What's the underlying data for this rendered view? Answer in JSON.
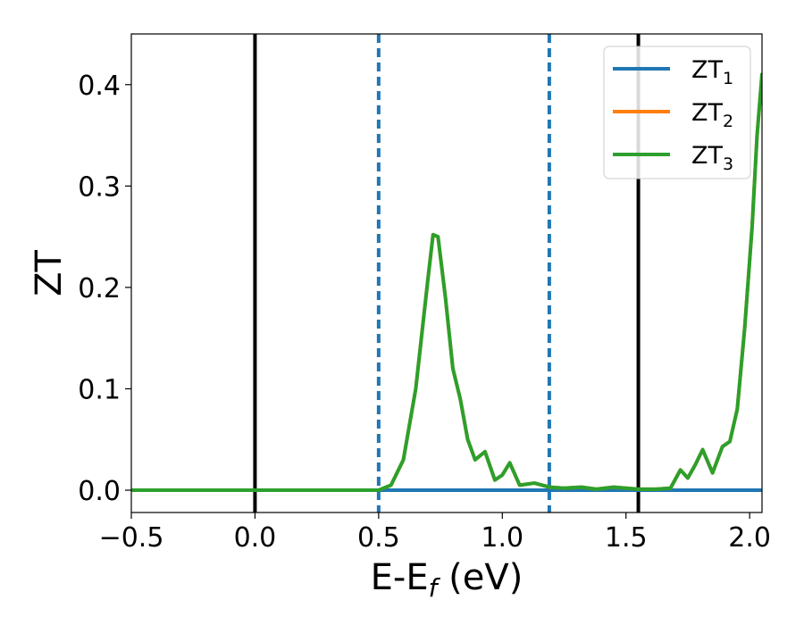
{
  "chart_data": {
    "type": "line",
    "xlabel": {
      "main": "E-E",
      "sub": "f",
      "suffix": " (eV)"
    },
    "ylabel": "ZT",
    "xlim": [
      -0.5,
      2.05
    ],
    "ylim": [
      -0.022,
      0.45
    ],
    "x_ticks": [
      -0.5,
      0.0,
      0.5,
      1.0,
      1.5,
      2.0
    ],
    "x_tick_labels": [
      "−0.5",
      "0.0",
      "0.5",
      "1.0",
      "1.5",
      "2.0"
    ],
    "y_ticks": [
      0.0,
      0.1,
      0.2,
      0.3,
      0.4
    ],
    "y_tick_labels": [
      "0.0",
      "0.1",
      "0.2",
      "0.3",
      "0.4"
    ],
    "grid": false,
    "legend_position": "top-right",
    "vertical_lines": [
      {
        "x": 0.0,
        "style": "solid",
        "color": "#000000"
      },
      {
        "x": 1.55,
        "style": "solid",
        "color": "#000000"
      },
      {
        "x": 0.5,
        "style": "dashed",
        "color": "#1f77b4"
      },
      {
        "x": 1.19,
        "style": "dashed",
        "color": "#1f77b4"
      }
    ],
    "series": [
      {
        "name": "ZT",
        "sub": "1",
        "color": "#1f77b4",
        "points": [
          [
            -0.5,
            0.0
          ],
          [
            2.05,
            0.0
          ]
        ]
      },
      {
        "name": "ZT",
        "sub": "2",
        "color": "#ff7f0e",
        "points": [
          [
            -0.5,
            0.0
          ],
          [
            0.4,
            0.0
          ],
          [
            0.5,
            0.0
          ],
          [
            0.55,
            0.005
          ],
          [
            0.6,
            0.03
          ],
          [
            0.65,
            0.1
          ],
          [
            0.7,
            0.21
          ],
          [
            0.72,
            0.252
          ],
          [
            0.74,
            0.25
          ],
          [
            0.77,
            0.19
          ],
          [
            0.8,
            0.12
          ],
          [
            0.83,
            0.09
          ],
          [
            0.86,
            0.05
          ],
          [
            0.89,
            0.03
          ],
          [
            0.93,
            0.038
          ],
          [
            0.97,
            0.01
          ],
          [
            1.0,
            0.015
          ],
          [
            1.03,
            0.027
          ],
          [
            1.07,
            0.005
          ],
          [
            1.13,
            0.007
          ],
          [
            1.19,
            0.003
          ],
          [
            1.25,
            0.002
          ],
          [
            1.32,
            0.003
          ],
          [
            1.38,
            0.001
          ],
          [
            1.45,
            0.003
          ],
          [
            1.55,
            0.001
          ],
          [
            1.62,
            0.001
          ],
          [
            1.68,
            0.002
          ],
          [
            1.72,
            0.02
          ],
          [
            1.75,
            0.012
          ],
          [
            1.78,
            0.025
          ],
          [
            1.81,
            0.04
          ],
          [
            1.85,
            0.017
          ],
          [
            1.89,
            0.043
          ],
          [
            1.92,
            0.048
          ],
          [
            1.95,
            0.08
          ],
          [
            1.98,
            0.16
          ],
          [
            2.01,
            0.26
          ],
          [
            2.03,
            0.35
          ],
          [
            2.05,
            0.41
          ]
        ]
      },
      {
        "name": "ZT",
        "sub": "3",
        "color": "#2ca02c",
        "points": [
          [
            -0.5,
            0.0
          ],
          [
            0.4,
            0.0
          ],
          [
            0.5,
            0.0
          ],
          [
            0.55,
            0.005
          ],
          [
            0.6,
            0.03
          ],
          [
            0.65,
            0.1
          ],
          [
            0.7,
            0.21
          ],
          [
            0.72,
            0.252
          ],
          [
            0.74,
            0.25
          ],
          [
            0.77,
            0.19
          ],
          [
            0.8,
            0.12
          ],
          [
            0.83,
            0.09
          ],
          [
            0.86,
            0.05
          ],
          [
            0.89,
            0.03
          ],
          [
            0.93,
            0.038
          ],
          [
            0.97,
            0.01
          ],
          [
            1.0,
            0.015
          ],
          [
            1.03,
            0.027
          ],
          [
            1.07,
            0.005
          ],
          [
            1.13,
            0.007
          ],
          [
            1.19,
            0.003
          ],
          [
            1.25,
            0.002
          ],
          [
            1.32,
            0.003
          ],
          [
            1.38,
            0.001
          ],
          [
            1.45,
            0.003
          ],
          [
            1.55,
            0.001
          ],
          [
            1.62,
            0.001
          ],
          [
            1.68,
            0.002
          ],
          [
            1.72,
            0.02
          ],
          [
            1.75,
            0.012
          ],
          [
            1.78,
            0.025
          ],
          [
            1.81,
            0.04
          ],
          [
            1.85,
            0.017
          ],
          [
            1.89,
            0.043
          ],
          [
            1.92,
            0.048
          ],
          [
            1.95,
            0.08
          ],
          [
            1.98,
            0.16
          ],
          [
            2.01,
            0.26
          ],
          [
            2.03,
            0.35
          ],
          [
            2.05,
            0.41
          ]
        ]
      }
    ]
  }
}
